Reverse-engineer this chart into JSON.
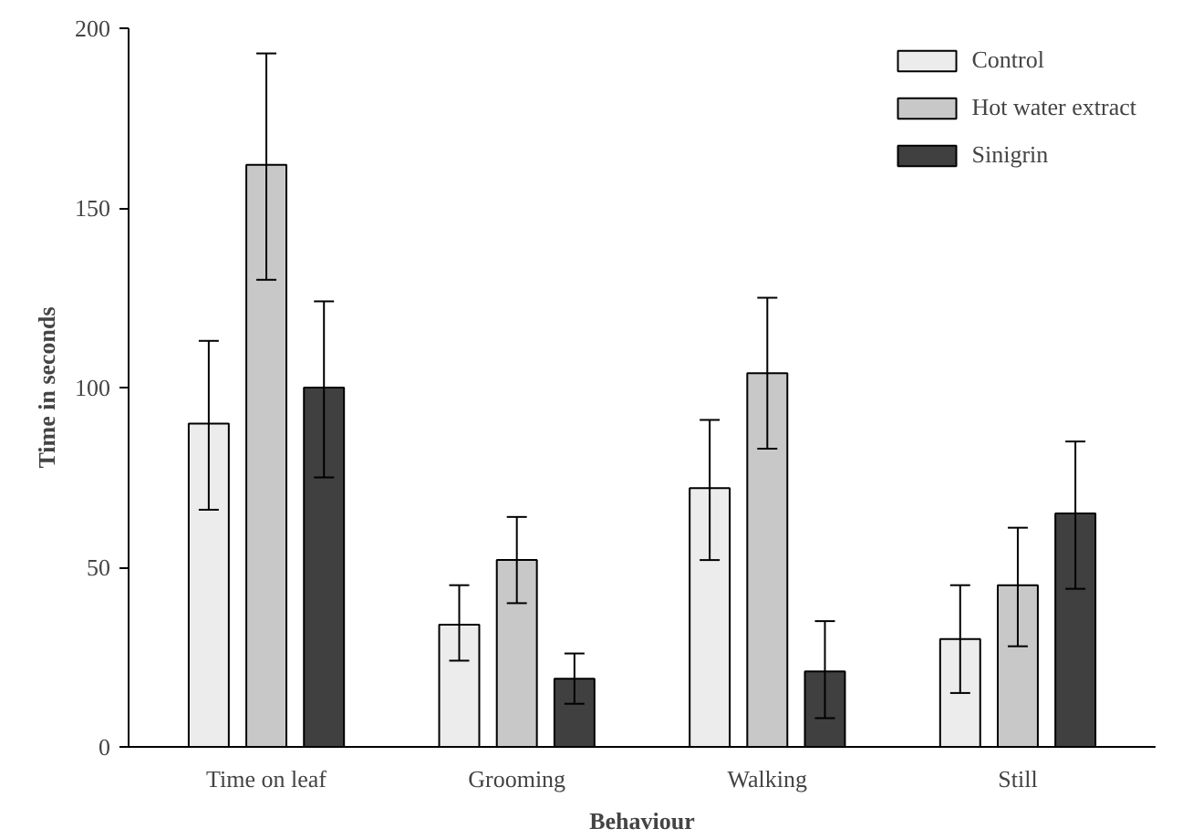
{
  "chart_data": {
    "type": "bar",
    "xlabel": "Behaviour",
    "ylabel": "Time in seconds",
    "categories": [
      "Time on leaf",
      "Grooming",
      "Walking",
      "Still"
    ],
    "series": [
      {
        "name": "Control",
        "color": "#ececec",
        "values": [
          90,
          34,
          72,
          30
        ],
        "errors": [
          [
            66,
            113
          ],
          [
            24,
            45
          ],
          [
            52,
            91
          ],
          [
            15,
            45
          ]
        ]
      },
      {
        "name": "Hot water extract",
        "color": "#c8c8c8",
        "values": [
          162,
          52,
          104,
          45
        ],
        "errors": [
          [
            130,
            193
          ],
          [
            40,
            64
          ],
          [
            83,
            125
          ],
          [
            28,
            61
          ]
        ]
      },
      {
        "name": "Sinigrin",
        "color": "#404040",
        "values": [
          100,
          19,
          21,
          65
        ],
        "errors": [
          [
            75,
            124
          ],
          [
            12,
            26
          ],
          [
            8,
            35
          ],
          [
            44,
            85
          ]
        ]
      }
    ],
    "ylim": [
      0,
      200
    ],
    "yticks": [
      0,
      50,
      100,
      150,
      200
    ],
    "grid": false,
    "legend": "top right"
  }
}
